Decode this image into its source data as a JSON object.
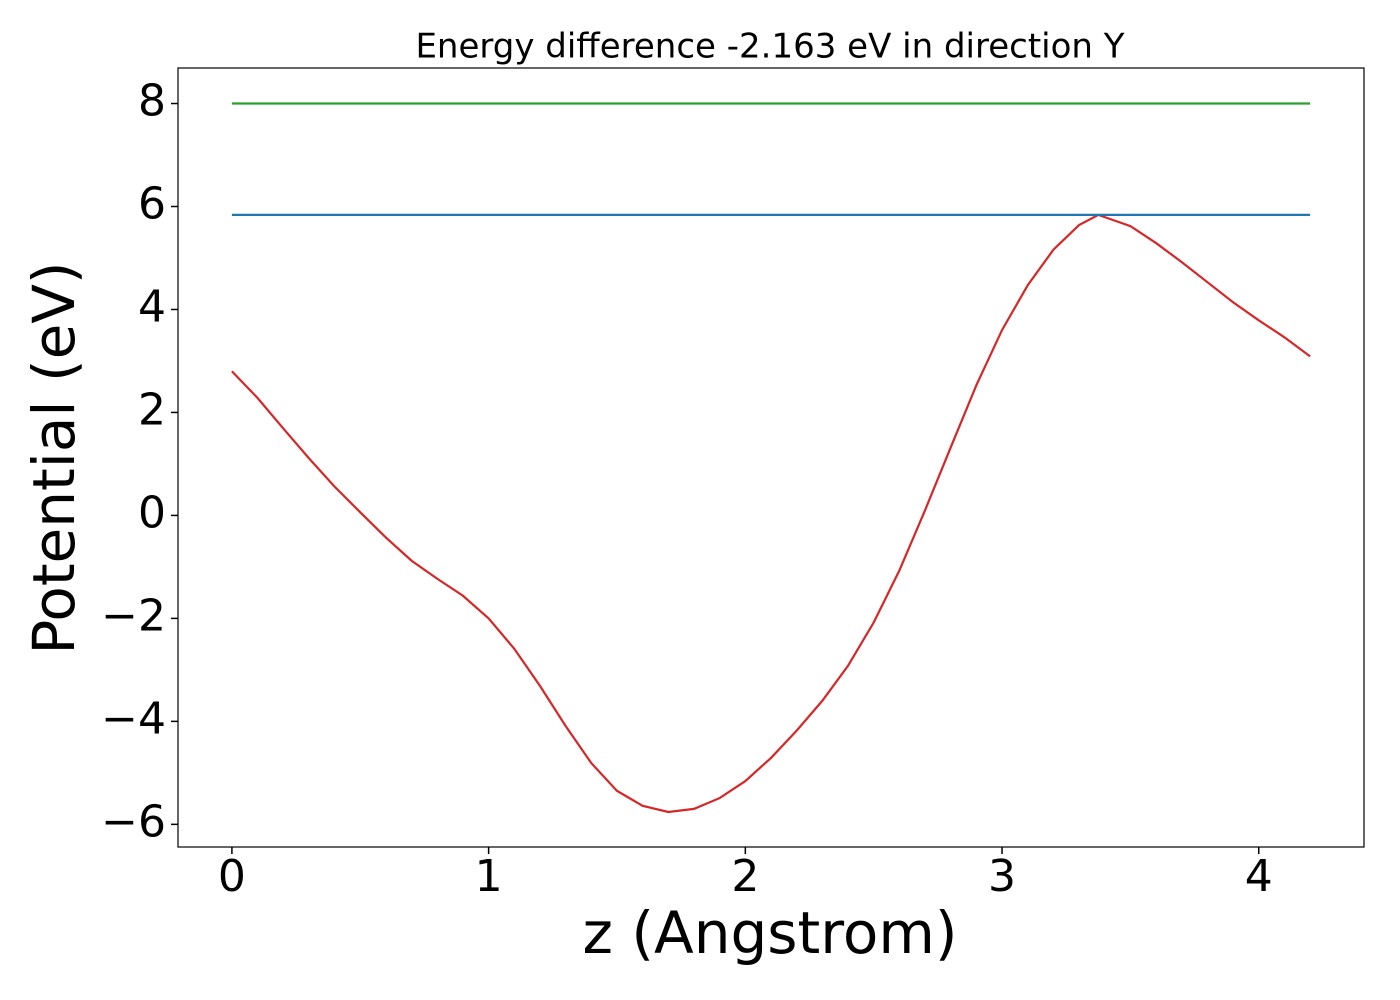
{
  "chart_data": {
    "type": "line",
    "title": "Energy difference -2.163 eV in direction Y",
    "xlabel": "z (Angstrom)",
    "ylabel": "Potential (eV)",
    "xlim": [
      -0.21,
      4.41
    ],
    "ylim": [
      -6.44,
      8.69
    ],
    "xticks": [
      0,
      1,
      2,
      3,
      4
    ],
    "yticks": [
      {
        "value": -6,
        "label": "−6"
      },
      {
        "value": -4,
        "label": "−4"
      },
      {
        "value": -2,
        "label": "−2"
      },
      0,
      2,
      4,
      6,
      8
    ],
    "grid": false,
    "series": [
      {
        "color": "#d62728",
        "x": [
          0,
          0.1,
          0.2,
          0.3,
          0.4,
          0.5,
          0.6,
          0.7,
          0.8,
          0.9,
          1.0,
          1.1,
          1.2,
          1.3,
          1.4,
          1.5,
          1.6,
          1.7,
          1.8,
          1.9,
          2.0,
          2.1,
          2.2,
          2.3,
          2.4,
          2.5,
          2.6,
          2.7,
          2.8,
          2.9,
          3.0,
          3.1,
          3.2,
          3.3,
          3.375,
          3.5,
          3.6,
          3.7,
          3.8,
          3.9,
          4.0,
          4.1,
          4.2
        ],
        "values": [
          2.8,
          2.28,
          1.69,
          1.11,
          0.56,
          0.06,
          -0.43,
          -0.88,
          -1.23,
          -1.56,
          -2.0,
          -2.59,
          -3.31,
          -4.09,
          -4.81,
          -5.35,
          -5.64,
          -5.76,
          -5.7,
          -5.49,
          -5.16,
          -4.71,
          -4.18,
          -3.6,
          -2.92,
          -2.08,
          -1.07,
          0.1,
          1.32,
          2.53,
          3.6,
          4.47,
          5.16,
          5.64,
          5.837,
          5.62,
          5.29,
          4.92,
          4.53,
          4.14,
          3.79,
          3.46,
          3.09
        ]
      },
      {
        "color": "#1f77b4",
        "x": [
          0,
          4.2
        ],
        "values": [
          5.837,
          5.837
        ]
      },
      {
        "color": "#2ca02c",
        "x": [
          0,
          4.2
        ],
        "values": [
          8,
          8
        ]
      }
    ]
  }
}
